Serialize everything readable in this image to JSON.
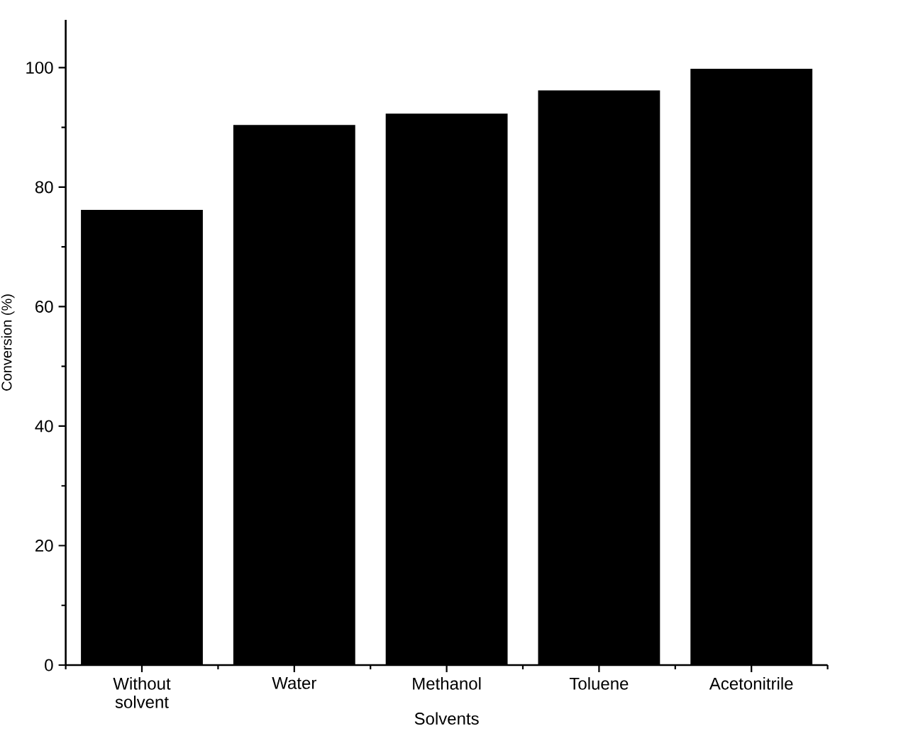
{
  "chart_data": {
    "type": "bar",
    "xlabel": "Solvents",
    "ylabel": "Conversion (%)",
    "categories": [
      "Without solvent",
      "Water",
      "Methanol",
      "Toluene",
      "Acetonitrile"
    ],
    "values": [
      76.2,
      90.4,
      92.3,
      96.2,
      99.8
    ],
    "color": "#000000",
    "ylim": [
      0,
      108
    ],
    "yticks": [
      0,
      20,
      40,
      60,
      80,
      100
    ],
    "grid": false
  }
}
